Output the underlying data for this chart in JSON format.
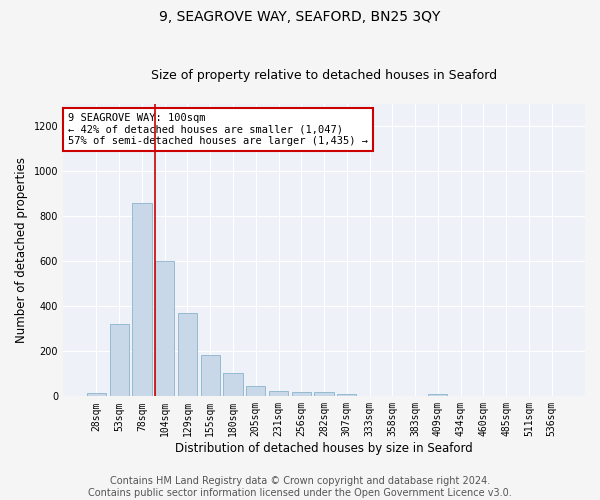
{
  "title": "9, SEAGROVE WAY, SEAFORD, BN25 3QY",
  "subtitle": "Size of property relative to detached houses in Seaford",
  "xlabel": "Distribution of detached houses by size in Seaford",
  "ylabel": "Number of detached properties",
  "bar_color": "#c8d8e8",
  "bar_edge_color": "#8ab4cc",
  "background_color": "#eef2f8",
  "grid_color": "#ffffff",
  "fig_background": "#f5f5f5",
  "categories": [
    "28sqm",
    "53sqm",
    "78sqm",
    "104sqm",
    "129sqm",
    "155sqm",
    "180sqm",
    "205sqm",
    "231sqm",
    "256sqm",
    "282sqm",
    "307sqm",
    "333sqm",
    "358sqm",
    "383sqm",
    "409sqm",
    "434sqm",
    "460sqm",
    "485sqm",
    "511sqm",
    "536sqm"
  ],
  "values": [
    15,
    320,
    860,
    600,
    370,
    185,
    105,
    48,
    22,
    18,
    18,
    10,
    0,
    0,
    0,
    12,
    0,
    0,
    0,
    0,
    0
  ],
  "ylim": [
    0,
    1300
  ],
  "yticks": [
    0,
    200,
    400,
    600,
    800,
    1000,
    1200
  ],
  "red_line_index": 3,
  "annotation_text": "9 SEAGROVE WAY: 100sqm\n← 42% of detached houses are smaller (1,047)\n57% of semi-detached houses are larger (1,435) →",
  "annotation_box_color": "#ffffff",
  "annotation_border_color": "#cc0000",
  "footer_text": "Contains HM Land Registry data © Crown copyright and database right 2024.\nContains public sector information licensed under the Open Government Licence v3.0.",
  "footnote_fontsize": 7,
  "title_fontsize": 10,
  "subtitle_fontsize": 9,
  "xlabel_fontsize": 8.5,
  "ylabel_fontsize": 8.5,
  "tick_fontsize": 7,
  "annot_fontsize": 7.5
}
